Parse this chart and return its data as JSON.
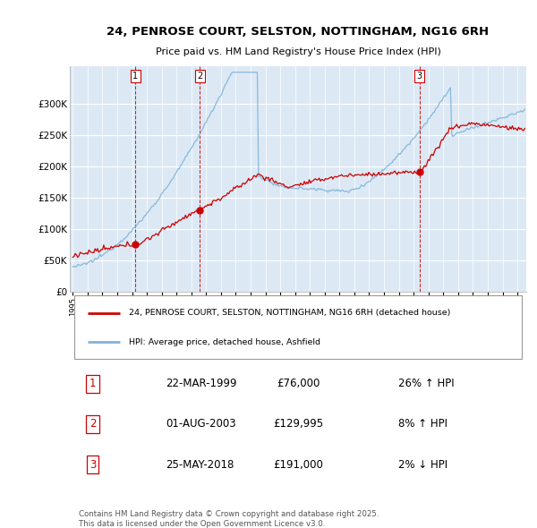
{
  "title_line1": "24, PENROSE COURT, SELSTON, NOTTINGHAM, NG16 6RH",
  "title_line2": "Price paid vs. HM Land Registry's House Price Index (HPI)",
  "ylim": [
    0,
    360000
  ],
  "yticks": [
    0,
    50000,
    100000,
    150000,
    200000,
    250000,
    300000
  ],
  "ytick_labels": [
    "£0",
    "£50K",
    "£100K",
    "£150K",
    "£200K",
    "£250K",
    "£300K"
  ],
  "background_color": "#ffffff",
  "plot_bg_color": "#dce9f5",
  "line_color_red": "#cc0000",
  "line_color_blue": "#7fb3d9",
  "grid_color": "#ffffff",
  "vline_color": "#cc0000",
  "transactions": [
    {
      "date": "22-MAR-1999",
      "price": 76000,
      "price_str": "£76,000",
      "pct": "26%",
      "dir": "↑",
      "num": 1
    },
    {
      "date": "01-AUG-2003",
      "price": 129995,
      "price_str": "£129,995",
      "pct": "8%",
      "dir": "↑",
      "num": 2
    },
    {
      "date": "25-MAY-2018",
      "price": 191000,
      "price_str": "£191,000",
      "pct": "2%",
      "dir": "↓",
      "num": 3
    }
  ],
  "legend_red": "24, PENROSE COURT, SELSTON, NOTTINGHAM, NG16 6RH (detached house)",
  "legend_blue": "HPI: Average price, detached house, Ashfield",
  "footnote": "Contains HM Land Registry data © Crown copyright and database right 2025.\nThis data is licensed under the Open Government Licence v3.0.",
  "x_start_year": 1995,
  "x_end_year": 2025,
  "transaction_years": [
    1999.23,
    2003.58,
    2018.39
  ],
  "transaction_prices": [
    76000,
    129995,
    191000
  ]
}
